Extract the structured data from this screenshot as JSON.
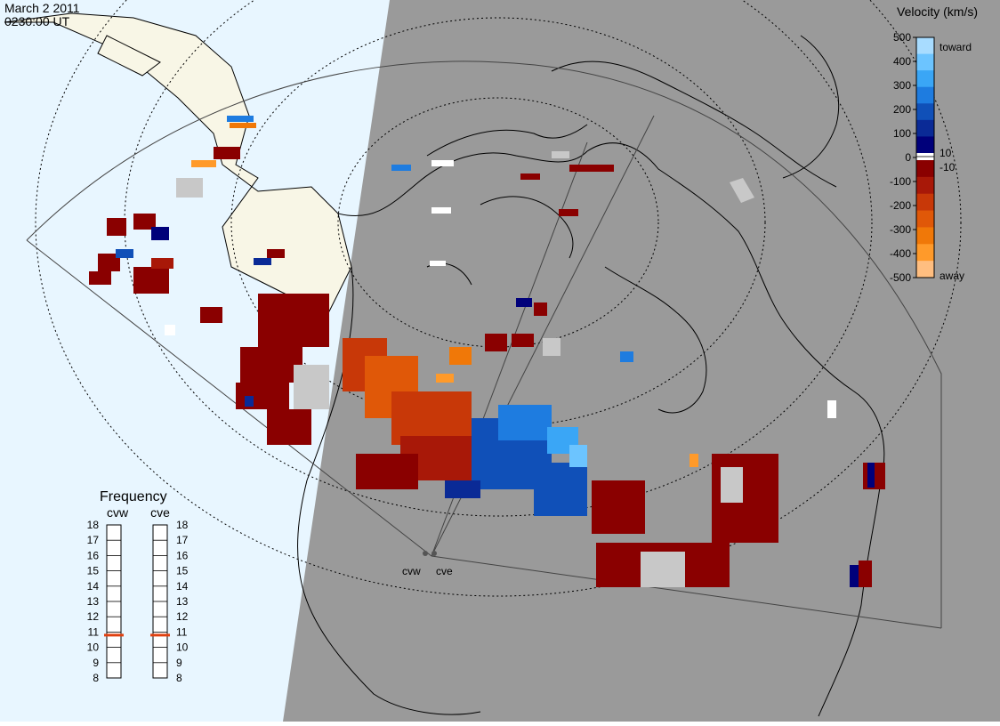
{
  "header": {
    "date": "March  2 2011",
    "time": "0230:00 UT"
  },
  "legend": {
    "title": "Velocity (km/s)",
    "ticks": [
      "500",
      "400",
      "300",
      "200",
      "100",
      "0",
      "-100",
      "-200",
      "-300",
      "-400",
      "-500"
    ],
    "toward_label": "toward",
    "away_label": "away",
    "plus_ten": "10",
    "minus_ten": "-10",
    "colors": [
      "#a8dcff",
      "#6cc4ff",
      "#3aa6f6",
      "#1e7ce0",
      "#1050b8",
      "#0a2a96",
      "#00007a",
      "#8a0000",
      "#a81808",
      "#c83808",
      "#e05808",
      "#f07808",
      "#ff9a2a",
      "#ffbe80"
    ]
  },
  "frequency": {
    "title": "Frequency",
    "radars": [
      "cvw",
      "cve"
    ],
    "scale": [
      "18",
      "17",
      "16",
      "15",
      "14",
      "13",
      "12",
      "11",
      "10",
      "9",
      "8"
    ],
    "current_mhz": [
      10.8,
      10.8
    ],
    "indicator_color": "#e04010"
  },
  "map": {
    "sites": [
      {
        "id": "cvw",
        "label": "cvw"
      },
      {
        "id": "cve",
        "label": "cve"
      }
    ],
    "colors": {
      "day": "#e8f6ff",
      "night": "#9a9a9a",
      "land_day": "#f8f6e6",
      "ground_scatter": "#c8c8c8"
    }
  }
}
